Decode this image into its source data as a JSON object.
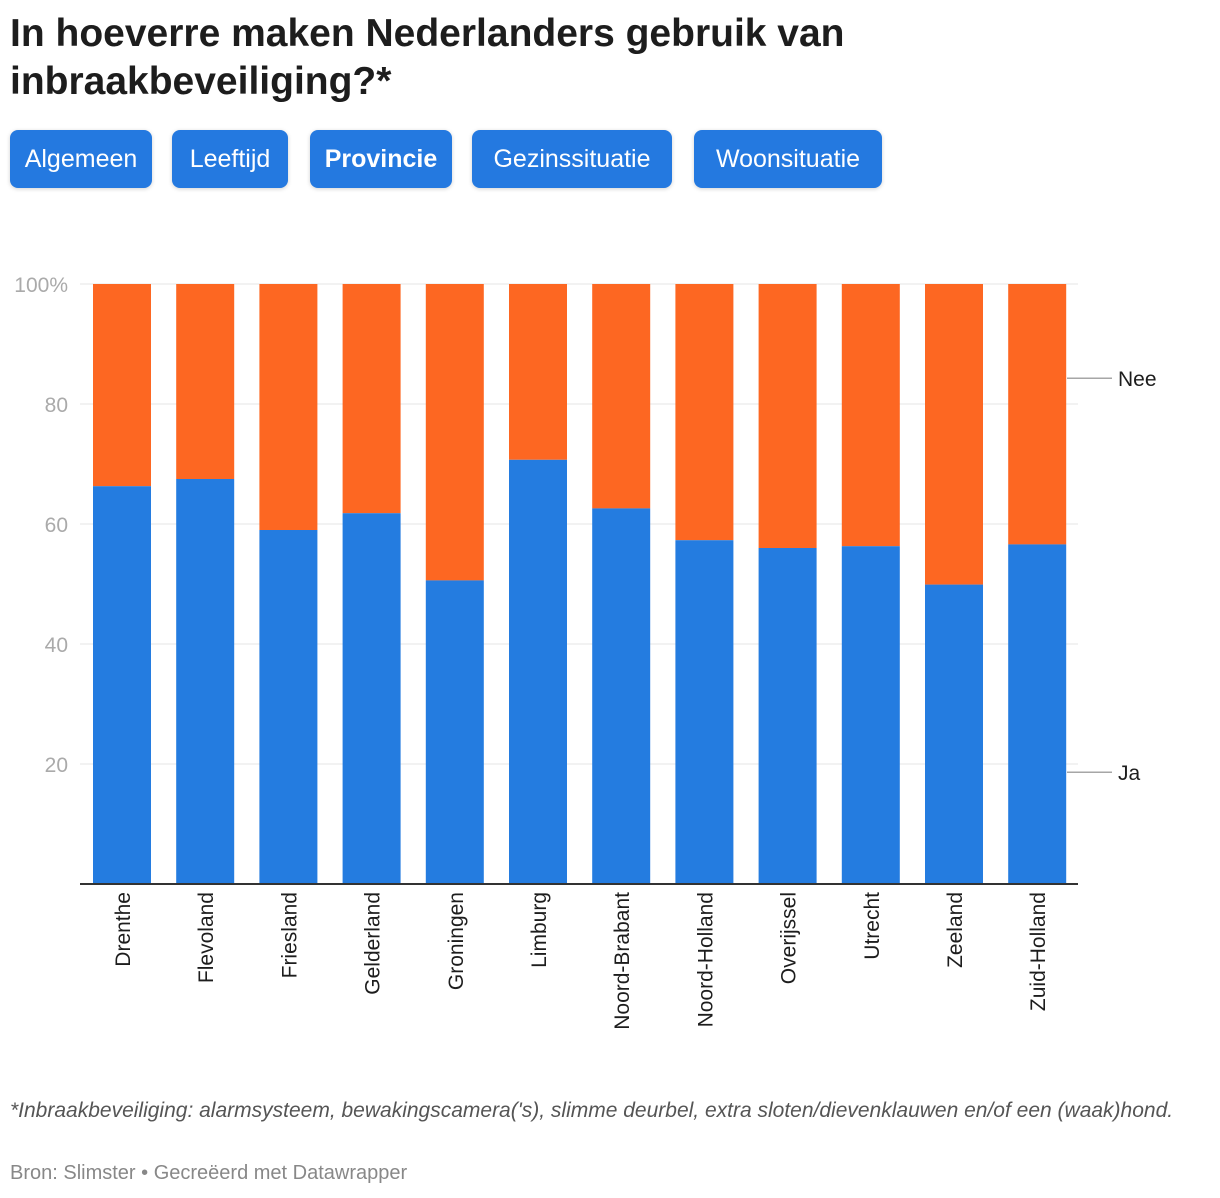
{
  "title": "In hoeverre maken Nederlanders gebruik van inbraakbeveiliging?*",
  "tabs": [
    {
      "label": "Algemeen",
      "active": false
    },
    {
      "label": "Leeftijd",
      "active": false
    },
    {
      "label": "Provincie",
      "active": true
    },
    {
      "label": "Gezinssituatie",
      "active": false
    },
    {
      "label": "Woonsituatie",
      "active": false
    }
  ],
  "colors": {
    "ja": "#247ce0",
    "nee": "#fd6722",
    "grid": "#e5e5e5",
    "axis": "#333333",
    "tab": "#2479e0"
  },
  "chart_data": {
    "type": "bar",
    "stacked": true,
    "categories": [
      "Drenthe",
      "Flevoland",
      "Friesland",
      "Gelderland",
      "Groningen",
      "Limburg",
      "Noord-Brabant",
      "Noord-Holland",
      "Overijssel",
      "Utrecht",
      "Zeeland",
      "Zuid-Holland"
    ],
    "series": [
      {
        "name": "Ja",
        "values": [
          66.3,
          67.5,
          59.0,
          61.8,
          50.6,
          70.7,
          62.6,
          57.3,
          56.0,
          56.3,
          49.9,
          56.6
        ]
      },
      {
        "name": "Nee",
        "values": [
          33.7,
          32.5,
          41.0,
          38.2,
          49.4,
          29.3,
          37.4,
          42.7,
          44.0,
          43.7,
          50.1,
          43.4
        ]
      }
    ],
    "yticks": [
      "20",
      "40",
      "60",
      "80",
      "100%"
    ],
    "ylim": [
      0,
      100
    ],
    "grid": true,
    "legend": "inline-right"
  },
  "notes": "*Inbraakbeveiliging: alarmsysteem, bewakingscamera('s), slimme deurbel, extra sloten/dievenklauwen en/of een (waak)hond.",
  "source": "Bron: Slimster • Gecreëerd met Datawrapper"
}
